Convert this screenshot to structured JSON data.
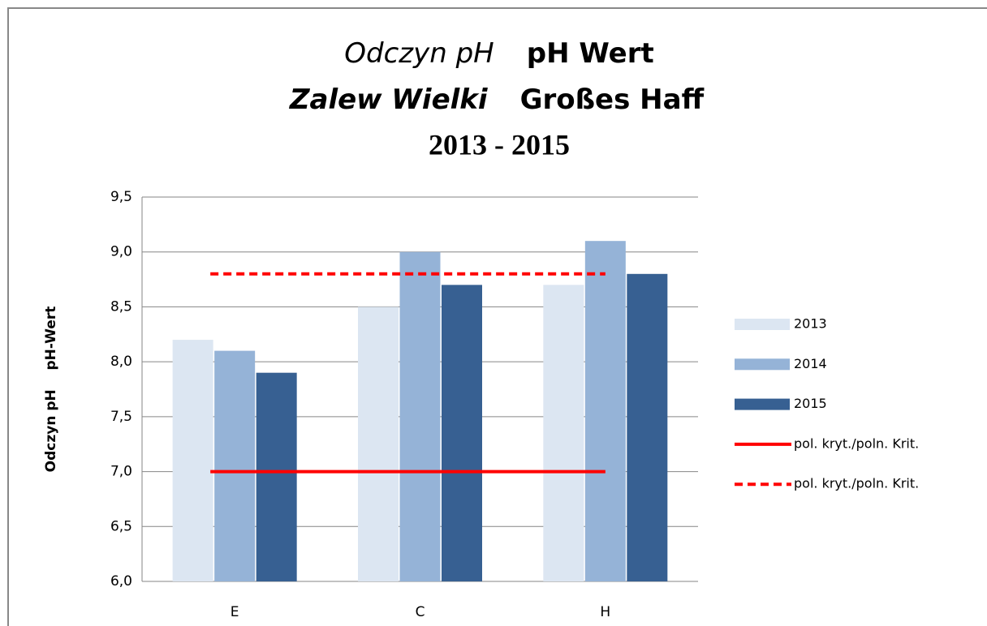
{
  "chart_data": {
    "type": "bar",
    "title": [
      [
        "Odczyn pH",
        "pH Wert"
      ],
      [
        "Zalew Wielki",
        "Großes Haff"
      ],
      [
        "2013 - 2015"
      ]
    ],
    "y_label": "Odczyn pH    pH-Wert",
    "categories": [
      "E",
      "C",
      "H"
    ],
    "series": [
      {
        "name": "2013",
        "color": "#dce6f2",
        "values": [
          8.2,
          8.5,
          8.7
        ]
      },
      {
        "name": "2014",
        "color": "#95b3d7",
        "values": [
          8.1,
          9.0,
          9.1
        ]
      },
      {
        "name": "2015",
        "color": "#376092",
        "values": [
          7.9,
          8.7,
          8.8
        ]
      },
      {
        "name": "pol. kryt./poln. Krit.",
        "color": "#ff0000",
        "type": "line",
        "dashed": false,
        "values": [
          7.0,
          7.0,
          7.0
        ]
      },
      {
        "name": "pol. kryt./poln. Krit.",
        "color": "#ff0000",
        "type": "line",
        "dashed": true,
        "values": [
          8.8,
          8.8,
          8.8
        ]
      }
    ],
    "ylim": [
      6.0,
      9.5
    ],
    "yticks": [
      {
        "value": 6.0,
        "label": "6,0"
      },
      {
        "value": 6.5,
        "label": "6,5"
      },
      {
        "value": 7.0,
        "label": "7,0"
      },
      {
        "value": 7.5,
        "label": "7,5"
      },
      {
        "value": 8.0,
        "label": "8,0"
      },
      {
        "value": 8.5,
        "label": "8,5"
      },
      {
        "value": 9.0,
        "label": "9,0"
      },
      {
        "value": 9.5,
        "label": "9,5"
      }
    ],
    "grid": true,
    "legend": "right"
  }
}
